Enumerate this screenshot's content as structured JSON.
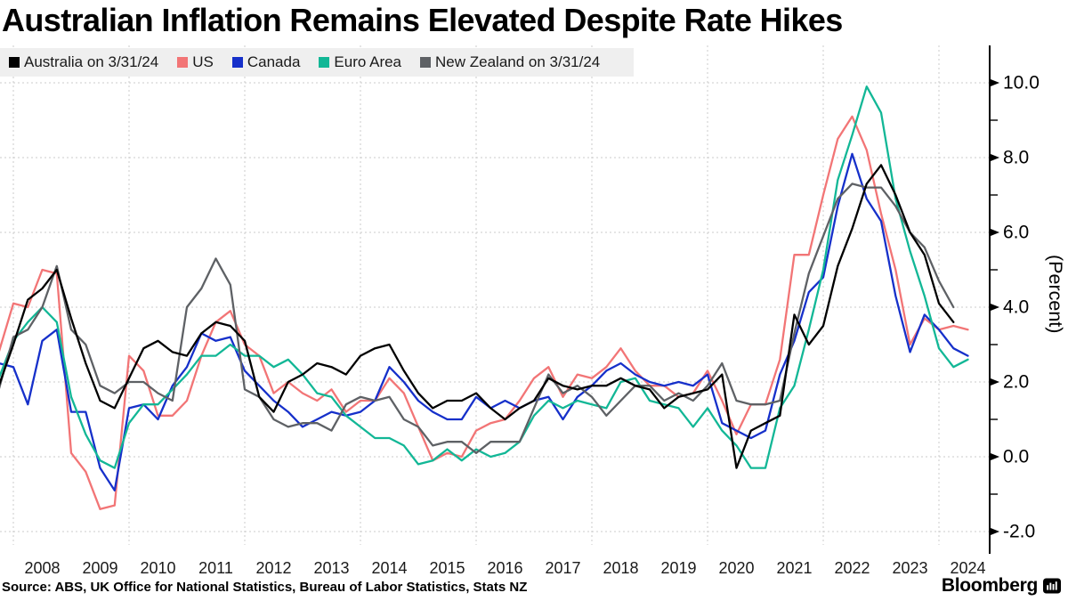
{
  "title": "Australian Inflation Remains Elevated Despite Rate Hikes",
  "source_line": "Source: ABS, UK Office for National Statistics, Bureau of Labor Statistics, Stats NZ",
  "branding": {
    "wordmark": "Bloomberg"
  },
  "y_axis": {
    "unit_label": "(Percent)"
  },
  "chart_data": {
    "type": "line",
    "title": "Australian Inflation Remains Elevated Despite Rate Hikes",
    "x_start": 2007.75,
    "x_step": 0.25,
    "x_tick_years": [
      2008,
      2009,
      2010,
      2011,
      2012,
      2013,
      2014,
      2015,
      2016,
      2017,
      2018,
      2019,
      2020,
      2021,
      2022,
      2023,
      2024
    ],
    "x_gridline_years": [
      2008,
      2010,
      2012,
      2014,
      2016,
      2018,
      2020,
      2022,
      2024
    ],
    "ylim": [
      -2.5,
      10.9
    ],
    "y_ticks": [
      10,
      8,
      6,
      4,
      2,
      0,
      -2
    ],
    "y_minor_ticks": [
      9,
      7,
      5,
      3,
      1,
      -1
    ],
    "ylabel": "(Percent)",
    "grid": "dashed",
    "legend_position": "top-left",
    "grid_color": "#cbcbcb",
    "series": [
      {
        "name": "US",
        "color": "#F27576",
        "values": [
          2.8,
          4.1,
          4.0,
          5.0,
          4.9,
          0.1,
          -0.4,
          -1.4,
          -1.3,
          2.7,
          2.3,
          1.1,
          1.1,
          1.5,
          2.7,
          3.6,
          3.9,
          3.0,
          2.7,
          1.7,
          2.0,
          1.7,
          1.5,
          1.8,
          1.2,
          1.5,
          1.5,
          2.1,
          1.7,
          0.8,
          -0.1,
          0.1,
          0.0,
          0.7,
          0.9,
          1.0,
          1.5,
          2.1,
          2.4,
          1.6,
          2.2,
          2.1,
          2.4,
          2.9,
          2.3,
          1.9,
          1.9,
          1.6,
          1.7,
          2.3,
          1.5,
          0.6,
          1.4,
          1.4,
          2.6,
          5.4,
          5.4,
          7.0,
          8.5,
          9.1,
          8.2,
          6.5,
          5.0,
          3.0,
          3.7,
          3.4,
          3.5,
          3.4
        ]
      },
      {
        "name": "Canada",
        "color": "#1630CA",
        "values": [
          2.5,
          2.4,
          1.4,
          3.1,
          3.4,
          1.2,
          1.2,
          -0.3,
          -0.9,
          1.3,
          1.4,
          1.0,
          1.9,
          2.4,
          3.3,
          3.1,
          3.2,
          2.3,
          1.9,
          1.5,
          1.2,
          0.8,
          1.0,
          1.2,
          1.1,
          1.2,
          1.5,
          2.4,
          2.0,
          1.5,
          1.2,
          1.0,
          1.0,
          1.6,
          1.3,
          1.5,
          1.3,
          1.5,
          1.6,
          1.0,
          1.6,
          1.9,
          2.3,
          2.5,
          2.2,
          2.0,
          1.9,
          2.0,
          1.9,
          2.2,
          0.9,
          0.7,
          0.5,
          0.7,
          2.2,
          3.1,
          4.4,
          4.8,
          6.7,
          8.1,
          6.9,
          6.3,
          4.3,
          2.8,
          3.8,
          3.4,
          2.9,
          2.7
        ]
      },
      {
        "name": "Euro Area",
        "color": "#12B796",
        "values": [
          2.1,
          3.1,
          3.6,
          4.0,
          3.6,
          1.6,
          0.6,
          -0.1,
          -0.3,
          0.9,
          1.4,
          1.4,
          1.8,
          2.2,
          2.7,
          2.7,
          3.0,
          2.7,
          2.7,
          2.4,
          2.6,
          2.2,
          1.7,
          1.6,
          1.1,
          0.8,
          0.5,
          0.5,
          0.3,
          -0.2,
          -0.1,
          0.2,
          -0.1,
          0.2,
          0.0,
          0.1,
          0.4,
          1.1,
          1.5,
          1.3,
          1.5,
          1.4,
          1.3,
          2.0,
          2.1,
          1.5,
          1.4,
          1.3,
          0.8,
          1.3,
          0.7,
          0.3,
          -0.3,
          -0.3,
          1.3,
          1.9,
          3.4,
          5.0,
          7.4,
          8.6,
          9.9,
          9.2,
          6.9,
          5.5,
          4.3,
          2.9,
          2.4,
          2.6
        ]
      },
      {
        "name": "New Zealand on 3/31/24",
        "color": "#5E6165",
        "values": [
          1.8,
          3.2,
          3.4,
          4.0,
          5.1,
          3.4,
          3.0,
          1.9,
          1.7,
          2.0,
          2.0,
          1.7,
          1.5,
          4.0,
          4.5,
          5.3,
          4.6,
          1.8,
          1.6,
          1.0,
          0.8,
          0.9,
          0.9,
          0.7,
          1.4,
          1.6,
          1.5,
          1.6,
          1.0,
          0.8,
          0.3,
          0.4,
          0.4,
          0.1,
          0.4,
          0.4,
          0.4,
          1.3,
          2.2,
          1.7,
          1.9,
          1.6,
          1.1,
          1.5,
          1.9,
          1.9,
          1.5,
          1.7,
          1.5,
          1.9,
          2.5,
          1.5,
          1.4,
          1.4,
          1.5,
          3.3,
          4.9,
          5.9,
          6.9,
          7.3,
          7.2,
          7.2,
          6.7,
          6.0,
          5.6,
          4.7,
          4.0
        ]
      },
      {
        "name": "Australia on 3/31/24",
        "color": "#000000",
        "values": [
          1.9,
          3.0,
          4.2,
          4.5,
          5.0,
          3.7,
          2.5,
          1.5,
          1.3,
          2.1,
          2.9,
          3.1,
          2.8,
          2.7,
          3.3,
          3.6,
          3.5,
          3.1,
          1.6,
          1.2,
          2.0,
          2.2,
          2.5,
          2.4,
          2.2,
          2.7,
          2.9,
          3.0,
          2.3,
          1.7,
          1.3,
          1.5,
          1.5,
          1.7,
          1.3,
          1.0,
          1.3,
          1.5,
          2.1,
          1.9,
          1.8,
          1.9,
          1.9,
          2.1,
          1.9,
          1.8,
          1.3,
          1.6,
          1.7,
          1.8,
          2.2,
          -0.3,
          0.7,
          0.9,
          1.1,
          3.8,
          3.0,
          3.5,
          5.1,
          6.1,
          7.3,
          7.8,
          7.0,
          6.0,
          5.4,
          4.1,
          3.6
        ]
      }
    ],
    "legend_order": [
      4,
      0,
      1,
      2,
      3
    ]
  }
}
